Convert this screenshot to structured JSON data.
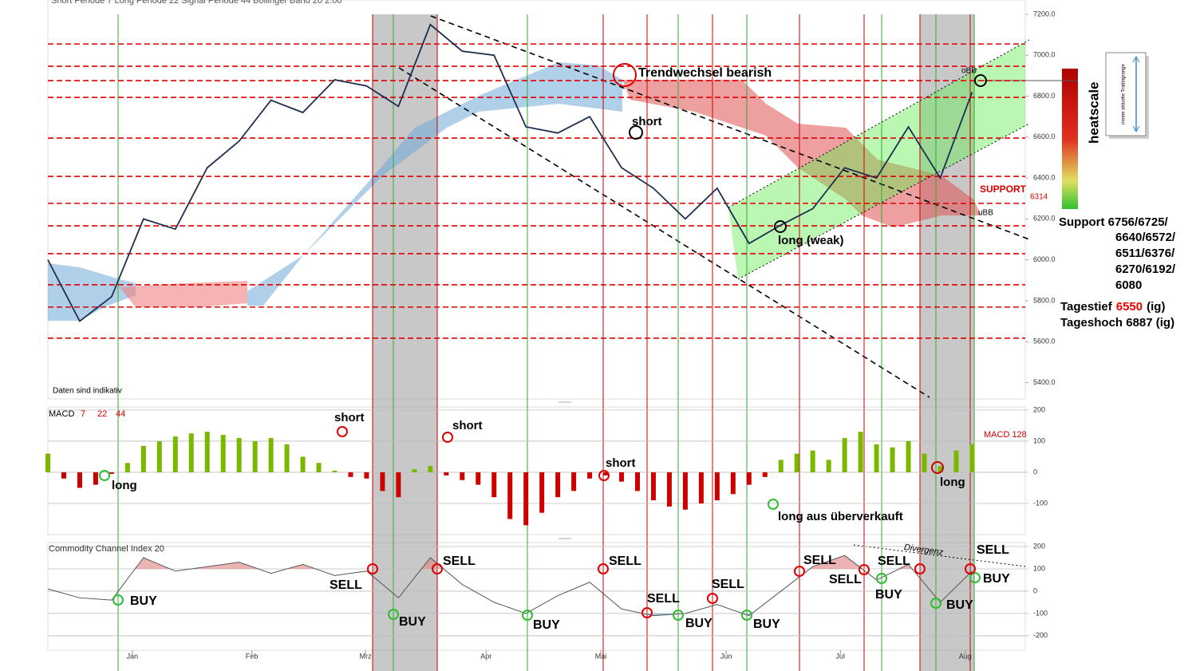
{
  "chart_data": [
    {
      "type": "line",
      "header": "Short Periode  7     Long Periode  22     Signal Periode  44     Bollinger Band  20  2.00",
      "xlim": [
        0,
        184
      ],
      "x": [
        0,
        6,
        12,
        18,
        24,
        30,
        36,
        42,
        48,
        54,
        60,
        66,
        72,
        78,
        84,
        90,
        96,
        102,
        108,
        114,
        120,
        126,
        132,
        138,
        144,
        150,
        156,
        162,
        168,
        174
      ],
      "series": [
        {
          "color": "#1f2f4f",
          "values": [
            6000,
            5700,
            5820,
            6200,
            6150,
            6450,
            6580,
            6780,
            6720,
            6880,
            6850,
            6750,
            7150,
            7020,
            7000,
            6650,
            6620,
            6700,
            6450,
            6350,
            6200,
            6350,
            6080,
            6170,
            6250,
            6450,
            6400,
            6650,
            6400,
            6820
          ]
        }
      ],
      "ylim": [
        5320,
        7270
      ],
      "yticks": [
        {
          "value": 5400,
          "label": "5400.0"
        },
        {
          "value": 5600,
          "label": "5600.0"
        },
        {
          "value": 5800,
          "label": "5800.0"
        },
        {
          "value": 6000,
          "label": "6000.0"
        },
        {
          "value": 6200,
          "label": "6200.0"
        },
        {
          "value": 6400,
          "label": "6400.0"
        },
        {
          "value": 6600,
          "label": "6600.0"
        },
        {
          "value": 6800,
          "label": "6800.0"
        },
        {
          "value": 7000,
          "label": "7000.0"
        },
        {
          "value": 7200,
          "label": "7200.0"
        }
      ],
      "levels": [
        7055,
        6946,
        6876,
        6794,
        6595,
        6408,
        6276,
        6166,
        6030,
        5878,
        5769,
        5617
      ],
      "level_color": "#e00000",
      "annotations": [
        "Trendwechsel bearish",
        "short",
        "long (weak)",
        "SUPPORT",
        "6314",
        "oBB",
        "uBB",
        "Daten sind indikativ"
      ],
      "side": {
        "heatscale": "heatscale",
        "tradingrange": "meine aktuelle Tradingrange",
        "support": [
          "Support 6756/6725/",
          "6640/6572/",
          "6511/6376/",
          "6270/6192/",
          "6080"
        ],
        "tagestief": [
          "Tagestief",
          "6550",
          "(ig)"
        ],
        "tageshoch": "Tageshoch 6887 (ig)"
      }
    },
    {
      "type": "bar",
      "xlim": [
        0,
        184
      ],
      "x": [
        0,
        3,
        6,
        9,
        12,
        15,
        18,
        21,
        24,
        27,
        30,
        33,
        36,
        39,
        42,
        45,
        48,
        51,
        54,
        57,
        60,
        63,
        66,
        69,
        72,
        75,
        78,
        81,
        84,
        87,
        90,
        93,
        96,
        99,
        102,
        105,
        108,
        111,
        114,
        117,
        120,
        123,
        126,
        129,
        132,
        135,
        138,
        141,
        144,
        147,
        150,
        153,
        156,
        159,
        162,
        165,
        168,
        171,
        174
      ],
      "values": [
        60,
        -20,
        -50,
        -40,
        -5,
        30,
        85,
        100,
        115,
        125,
        130,
        120,
        110,
        100,
        110,
        90,
        50,
        30,
        5,
        -15,
        -20,
        -60,
        -80,
        10,
        20,
        -10,
        -25,
        -40,
        -80,
        -150,
        -170,
        -130,
        -80,
        -60,
        -20,
        -10,
        -30,
        -60,
        -90,
        -110,
        -120,
        -100,
        -90,
        -70,
        -40,
        -15,
        40,
        60,
        70,
        40,
        110,
        130,
        90,
        80,
        100,
        60,
        20,
        70,
        90
      ],
      "colors": {
        "positive": "#7ab800",
        "negative": "#cc0000"
      },
      "ylim": [
        -200,
        210
      ],
      "yticks": [
        -100,
        0,
        100,
        200
      ],
      "annotations": [
        "MACD",
        "7",
        "22",
        "44",
        "short",
        "short",
        "short",
        "long",
        "long aus überverkauft",
        "long",
        "MACD 128"
      ]
    },
    {
      "type": "line",
      "title": "Commodity Channel Index  20",
      "xlim": [
        0,
        184
      ],
      "x": [
        0,
        6,
        12,
        18,
        24,
        30,
        36,
        42,
        48,
        54,
        60,
        66,
        72,
        78,
        84,
        90,
        96,
        102,
        108,
        114,
        120,
        126,
        132,
        138,
        144,
        150,
        156,
        162,
        168,
        174
      ],
      "series": [
        {
          "color": "#555555",
          "values": [
            10,
            -30,
            -40,
            150,
            90,
            110,
            130,
            80,
            120,
            70,
            90,
            -30,
            150,
            30,
            -50,
            -100,
            -20,
            40,
            -80,
            -110,
            -100,
            -60,
            -110,
            0,
            110,
            160,
            50,
            120,
            -50,
            90
          ]
        }
      ],
      "ylim": [
        -265,
        218
      ],
      "yticks": [
        -200,
        -100,
        0,
        100,
        200
      ],
      "xticks": [
        {
          "value": 15.9,
          "label": "Jan"
        },
        {
          "value": 38.4,
          "label": "Feb"
        },
        {
          "value": 59.8,
          "label": "Mrz"
        },
        {
          "value": 82.5,
          "label": "Apr"
        },
        {
          "value": 104.1,
          "label": "Mai"
        },
        {
          "value": 127.7,
          "label": "Jun"
        },
        {
          "value": 149.2,
          "label": "Jul"
        },
        {
          "value": 172.7,
          "label": "Aug"
        }
      ],
      "annotations": [
        "BUY",
        "BUY",
        "BUY",
        "BUY",
        "BUY",
        "BUY",
        "BUY",
        "BUY",
        "SELL",
        "SELL",
        "SELL",
        "SELL",
        "SELL",
        "SELL",
        "SELL",
        "SELL",
        "SELL",
        "Divergenz"
      ]
    }
  ]
}
